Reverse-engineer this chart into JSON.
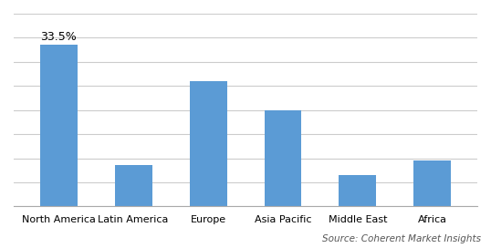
{
  "categories": [
    "North America",
    "Latin America",
    "Europe",
    "Asia Pacific",
    "Middle East",
    "Africa"
  ],
  "values": [
    33.5,
    8.5,
    26.0,
    20.0,
    6.5,
    9.5
  ],
  "bar_color": "#5B9BD5",
  "annotation_value": "33.5%",
  "annotation_bar_index": 0,
  "ylim": [
    0,
    40
  ],
  "yticks": [
    0,
    5,
    10,
    15,
    20,
    25,
    30,
    35,
    40
  ],
  "source_text": "Source: Coherent Market Insights",
  "background_color": "#ffffff",
  "grid_color": "#cccccc",
  "bar_width": 0.5,
  "tick_fontsize": 8,
  "annotation_fontsize": 9,
  "source_fontsize": 7.5
}
